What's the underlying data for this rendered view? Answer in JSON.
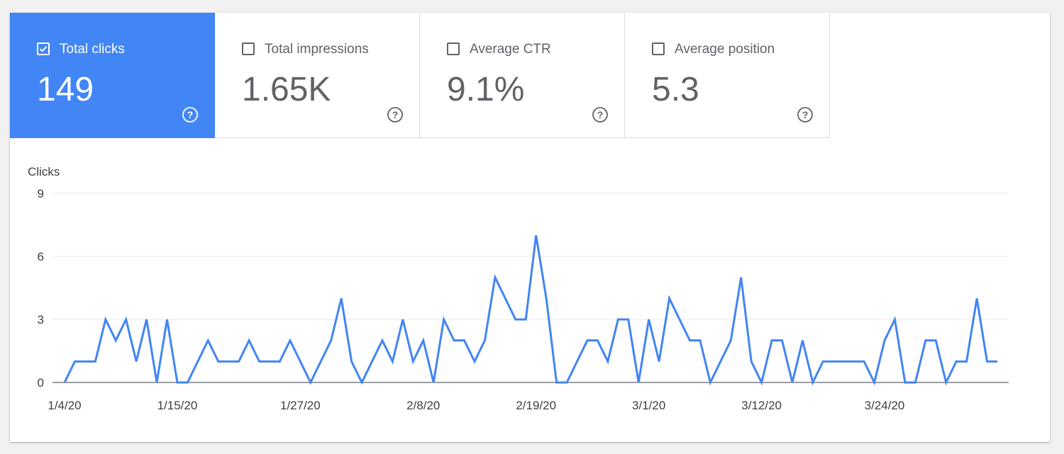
{
  "metrics": [
    {
      "label": "Total clicks",
      "value": "149",
      "checked": true
    },
    {
      "label": "Total impressions",
      "value": "1.65K",
      "checked": false
    },
    {
      "label": "Average CTR",
      "value": "9.1%",
      "checked": false
    },
    {
      "label": "Average position",
      "value": "5.3",
      "checked": false
    }
  ],
  "icons": {
    "checkbox": "checkbox-icon",
    "help": "help-circle-icon"
  },
  "colors": {
    "accent": "#4285f4",
    "metric_text": "#5f6368",
    "grid": "#e8eaed",
    "axis": "#5f6368"
  },
  "chart_data": {
    "type": "line",
    "title": "",
    "ylabel": "Clicks",
    "xlabel": "",
    "ylim": [
      0,
      9
    ],
    "y_ticks": [
      0,
      3,
      6,
      9
    ],
    "x_tick_labels": [
      "1/4/20",
      "1/15/20",
      "1/27/20",
      "2/8/20",
      "2/19/20",
      "3/1/20",
      "3/12/20",
      "3/24/20"
    ],
    "x_tick_indices": [
      0,
      11,
      23,
      35,
      46,
      57,
      68,
      80
    ],
    "grid": true,
    "series": [
      {
        "values": [
          0,
          1,
          1,
          1,
          3,
          2,
          3,
          1,
          3,
          0,
          3,
          0,
          0,
          1,
          2,
          1,
          1,
          1,
          2,
          1,
          1,
          1,
          2,
          1,
          0,
          1,
          2,
          4,
          1,
          0,
          1,
          2,
          1,
          3,
          1,
          2,
          0,
          3,
          2,
          2,
          1,
          2,
          5,
          4,
          3,
          3,
          7,
          4,
          0,
          0,
          1,
          2,
          2,
          1,
          3,
          3,
          0,
          3,
          1,
          4,
          3,
          2,
          2,
          0,
          1,
          2,
          5,
          1,
          0,
          2,
          2,
          0,
          2,
          0,
          1,
          1,
          1,
          1,
          1,
          0,
          2,
          3,
          0,
          0,
          2,
          2,
          0,
          1,
          1,
          4,
          1,
          1
        ]
      }
    ]
  }
}
